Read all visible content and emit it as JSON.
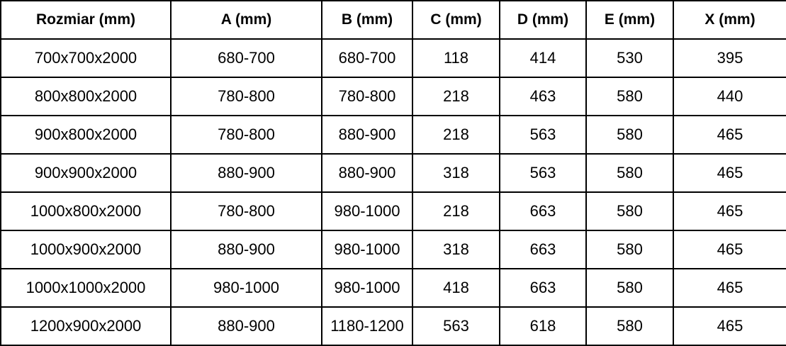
{
  "colors": {
    "background": "#ffffff",
    "border": "#000000",
    "text": "#000000"
  },
  "chart_data": {
    "type": "table",
    "columns": [
      "Rozmiar (mm)",
      "A (mm)",
      "B (mm)",
      "C (mm)",
      "D (mm)",
      "E (mm)",
      "X (mm)"
    ],
    "rows": [
      [
        "700x700x2000",
        "680-700",
        "680-700",
        "118",
        "414",
        "530",
        "395"
      ],
      [
        "800x800x2000",
        "780-800",
        "780-800",
        "218",
        "463",
        "580",
        "440"
      ],
      [
        "900x800x2000",
        "780-800",
        "880-900",
        "218",
        "563",
        "580",
        "465"
      ],
      [
        "900x900x2000",
        "880-900",
        "880-900",
        "318",
        "563",
        "580",
        "465"
      ],
      [
        "1000x800x2000",
        "780-800",
        "980-1000",
        "218",
        "663",
        "580",
        "465"
      ],
      [
        "1000x900x2000",
        "880-900",
        "980-1000",
        "318",
        "663",
        "580",
        "465"
      ],
      [
        "1000x1000x2000",
        "980-1000",
        "980-1000",
        "418",
        "663",
        "580",
        "465"
      ],
      [
        "1200x900x2000",
        "880-900",
        "1180-1200",
        "563",
        "618",
        "580",
        "465"
      ]
    ]
  }
}
